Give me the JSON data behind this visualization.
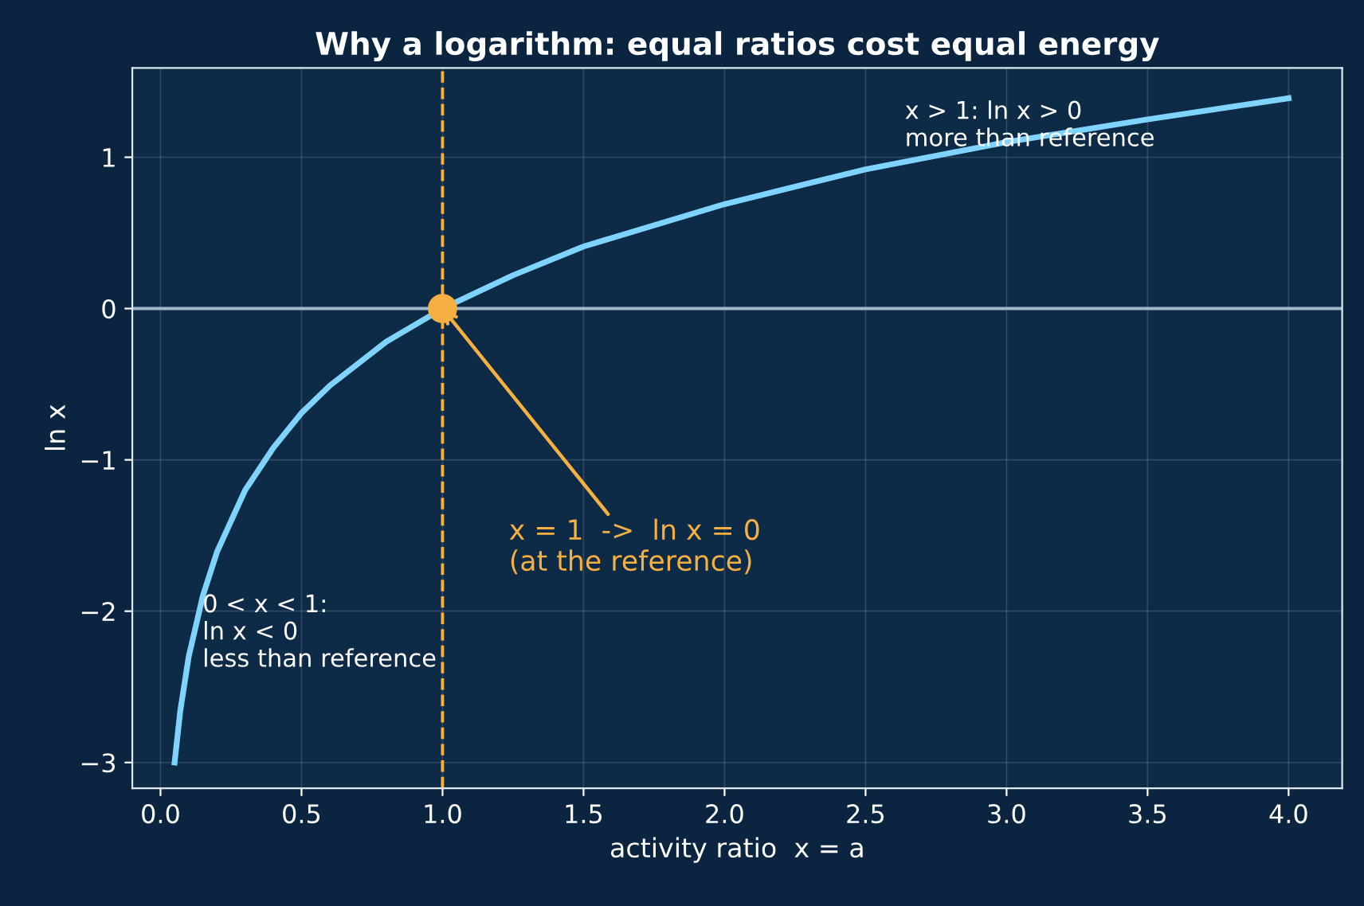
{
  "chart_data": {
    "type": "line",
    "title": "Why a logarithm: equal ratios cost equal energy",
    "xlabel": "activity ratio  x = a",
    "ylabel": "ln x",
    "x": [
      0.05,
      0.07,
      0.1,
      0.15,
      0.2,
      0.3,
      0.4,
      0.5,
      0.6,
      0.8,
      1.0,
      1.25,
      1.5,
      2.0,
      2.5,
      3.0,
      3.5,
      4.0
    ],
    "series": [
      {
        "color": "#7fd3ff",
        "values": [
          -3.0,
          -2.66,
          -2.3,
          -1.9,
          -1.61,
          -1.2,
          -0.92,
          -0.69,
          -0.51,
          -0.22,
          0,
          0.22,
          0.41,
          0.69,
          0.92,
          1.1,
          1.25,
          1.39
        ]
      },
      {
        "type": "scatter",
        "marker": "circle",
        "color": "#f5b041",
        "x": [
          1.0
        ],
        "values": [
          0
        ]
      }
    ],
    "xlim": [
      -0.1,
      4.19
    ],
    "ylim": [
      -3.17,
      1.59
    ],
    "xticks": [
      {
        "value": 0,
        "label": "0.0"
      },
      0.5,
      {
        "value": 1,
        "label": "1.0"
      },
      1.5,
      {
        "value": 2,
        "label": "2.0"
      },
      2.5,
      {
        "value": 3,
        "label": "3.0"
      },
      3.5,
      {
        "value": 4,
        "label": "4.0"
      }
    ],
    "yticks": [
      {
        "value": -3,
        "label": "−3"
      },
      {
        "value": -2,
        "label": "−2"
      },
      {
        "value": -1,
        "label": "−1"
      },
      0,
      1
    ],
    "ref_lines": [
      {
        "axis": "y",
        "value": 0,
        "color": "#9fb7c9",
        "line_style": "solid"
      },
      {
        "axis": "x",
        "value": 1,
        "color": "#f5b041",
        "line_style": "dashed"
      }
    ],
    "annotations": [
      {
        "text": "x = 1  ->  ln x = 0\n(at the reference)",
        "x": 1,
        "y": 0
      },
      "x > 1: ln x > 0\nmore than reference",
      "0 < x < 1:\nln x < 0\nless than reference"
    ],
    "grid": true,
    "line_style": "solid"
  }
}
